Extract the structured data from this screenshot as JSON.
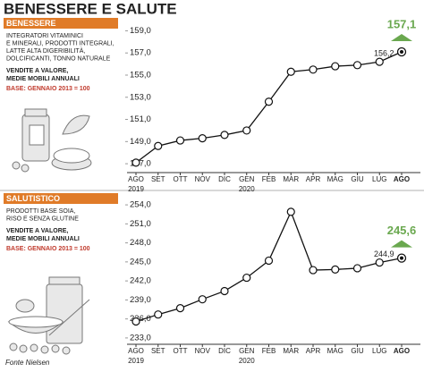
{
  "title": "BENESSERE E SALUTE",
  "source": "Fonte Nielsen",
  "chart_data": [
    {
      "type": "line",
      "panel_title": "BENESSERE",
      "description": [
        "INTEGRATORI VITAMINICI",
        "E MINERALI, PRODOTTI INTEGRALI,",
        "LATTE ALTA DIGERIBILITÀ,",
        "DOLCIFICANTI, TONNO NATURALE"
      ],
      "measure": [
        "VENDITE A VALORE,",
        "MEDIE MOBILI ANNUALI"
      ],
      "base": "BASE: GENNAIO 2013 = 100",
      "categories": [
        "AGO 2019",
        "SET",
        "OTT",
        "NOV",
        "DIC",
        "GEN 2020",
        "FEB",
        "MAR",
        "APR",
        "MAG",
        "GIU",
        "LUG",
        "AGO"
      ],
      "values": [
        147.1,
        148.6,
        149.1,
        149.3,
        149.6,
        150.0,
        152.6,
        155.3,
        155.5,
        155.8,
        155.9,
        156.2,
        157.1
      ],
      "value_labels": [
        null,
        null,
        null,
        null,
        null,
        null,
        null,
        null,
        null,
        null,
        null,
        "156,2",
        "157,1"
      ],
      "color": "#111111",
      "highlight_color": "#6aa84f",
      "ylim": [
        146.2,
        159.6
      ],
      "yticks": [
        {
          "value": 147,
          "label": "147,0"
        },
        {
          "value": 149,
          "label": "149,0"
        },
        {
          "value": 151,
          "label": "151,0"
        },
        {
          "value": 153,
          "label": "153,0"
        },
        {
          "value": 155,
          "label": "155,0"
        },
        {
          "value": 157,
          "label": "157,0"
        },
        {
          "value": 159,
          "label": "159,0"
        }
      ],
      "grid": false
    },
    {
      "type": "line",
      "panel_title": "SALUTISTICO",
      "description": [
        "PRODOTTI BASE SOIA,",
        "RISO E SENZA GLUTINE"
      ],
      "measure": [
        "VENDITE A VALORE,",
        "MEDIE MOBILI ANNUALI"
      ],
      "base": "BASE: GENNAIO 2013 = 100",
      "categories": [
        "AGO 2019",
        "SET",
        "OTT",
        "NOV",
        "DIC",
        "GEN 2020",
        "FEB",
        "MAR",
        "APR",
        "MAG",
        "GIU",
        "LUG",
        "AGO"
      ],
      "values": [
        235.6,
        236.7,
        237.7,
        239.1,
        240.4,
        242.5,
        245.2,
        252.9,
        243.7,
        243.8,
        244.0,
        244.9,
        245.6
      ],
      "value_labels": [
        null,
        null,
        null,
        null,
        null,
        null,
        null,
        null,
        null,
        null,
        null,
        "244,9",
        "245,6"
      ],
      "color": "#111111",
      "highlight_color": "#6aa84f",
      "ylim": [
        232,
        255
      ],
      "yticks": [
        {
          "value": 233,
          "label": "233,0"
        },
        {
          "value": 236,
          "label": "236,0"
        },
        {
          "value": 239,
          "label": "239,0"
        },
        {
          "value": 242,
          "label": "242,0"
        },
        {
          "value": 245,
          "label": "245,0"
        },
        {
          "value": 248,
          "label": "248,0"
        },
        {
          "value": 251,
          "label": "251,0"
        },
        {
          "value": 254,
          "label": "254,0"
        }
      ],
      "grid": false
    }
  ]
}
